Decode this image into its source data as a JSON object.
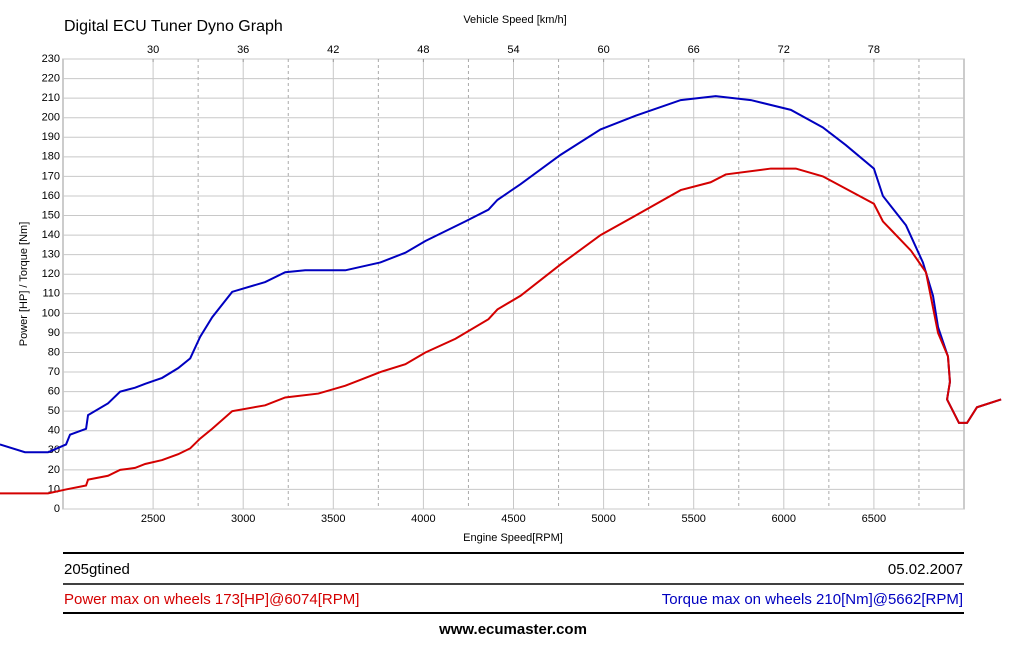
{
  "chart_data": {
    "type": "line",
    "title": "Digital ECU Tuner Dyno Graph",
    "x_label": "Engine Speed[RPM]",
    "y_label": "Power [HP] / Torque [Nm]",
    "x2_label": "Vehicle Speed [km/h]",
    "xlim": [
      2000,
      7000
    ],
    "xticks": [
      2500,
      3000,
      3500,
      4000,
      4500,
      5000,
      5500,
      6000,
      6500
    ],
    "x_minor_ticks": [
      2750,
      3250,
      3750,
      4250,
      4750,
      5250,
      5750,
      6250,
      6750
    ],
    "x2lim": [
      24,
      84
    ],
    "x2ticks": [
      30,
      36,
      42,
      48,
      54,
      60,
      66,
      72,
      78
    ],
    "ylim": [
      0,
      230
    ],
    "yticks": [
      0,
      10,
      20,
      30,
      40,
      50,
      60,
      70,
      80,
      90,
      100,
      110,
      120,
      130,
      140,
      150,
      160,
      170,
      180,
      190,
      200,
      210,
      220,
      230
    ],
    "grid": true,
    "series": [
      {
        "color": "#0000c0",
        "x": [
          1650,
          1789,
          1917,
          2017,
          2039,
          2128,
          2139,
          2250,
          2317,
          2400,
          2456,
          2550,
          2639,
          2706,
          2761,
          2828,
          2939,
          3122,
          3233,
          3344,
          3567,
          3761,
          3900,
          4011,
          4233,
          4361,
          4411,
          4539,
          4761,
          4983,
          5178,
          5428,
          5622,
          5817,
          6039,
          6217,
          6344,
          6500,
          6550,
          6678,
          6772,
          6828,
          6856,
          6911,
          6922,
          6906,
          6972,
          7017,
          7072,
          7206
        ],
        "values": [
          33,
          29,
          29,
          33,
          38,
          41,
          48,
          54,
          60,
          62,
          64,
          67,
          72,
          77,
          88,
          98,
          111,
          116,
          121,
          122,
          122,
          126,
          131,
          137,
          147,
          153,
          158,
          166,
          181,
          194,
          201,
          209,
          211,
          209,
          204,
          195,
          186,
          174,
          160,
          145,
          126,
          109,
          93,
          78,
          65,
          56,
          44,
          44,
          52,
          56
        ]
      },
      {
        "color": "#d40000",
        "x": [
          1650,
          1917,
          2017,
          2128,
          2139,
          2250,
          2317,
          2400,
          2456,
          2550,
          2639,
          2706,
          2761,
          2828,
          2939,
          3122,
          3233,
          3417,
          3567,
          3761,
          3900,
          4011,
          4178,
          4361,
          4411,
          4539,
          4761,
          4983,
          5178,
          5428,
          5594,
          5678,
          5928,
          6067,
          6217,
          6500,
          6550,
          6706,
          6789,
          6856,
          6911,
          6922,
          6906,
          6972,
          7017,
          7072,
          7206
        ],
        "values": [
          8,
          8,
          10,
          12,
          15,
          17,
          20,
          21,
          23,
          25,
          28,
          31,
          36,
          41,
          50,
          53,
          57,
          59,
          63,
          70,
          74,
          80,
          87,
          97,
          102,
          109,
          125,
          140,
          150,
          163,
          167,
          171,
          174,
          174,
          170,
          156,
          147,
          132,
          121,
          90,
          78,
          65,
          56,
          44,
          44,
          52,
          56
        ]
      }
    ]
  },
  "footer": {
    "name": "205gtined",
    "date": "05.02.2007",
    "power": "Power max on wheels 173[HP]@6074[RPM]",
    "torque": "Torque max on wheels 210[Nm]@5662[RPM]",
    "site": "www.ecumaster.com"
  }
}
